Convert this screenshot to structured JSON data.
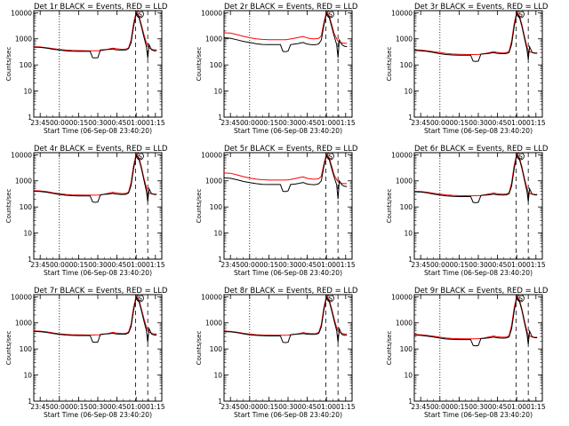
{
  "chart_data": {
    "type": "line",
    "shared": {
      "xlabel": "Start Time (06-Sep-08 23:40:20)",
      "ylabel": "Counts/sec",
      "x_tick_labels": [
        "23:45",
        "00:00",
        "00:15",
        "00:30",
        "00:45",
        "01:00",
        "01:15"
      ],
      "x_tick_minutes": [
        5,
        20,
        35,
        50,
        65,
        80,
        95
      ],
      "x_range_minutes": [
        0,
        100
      ],
      "y_scale": "log",
      "y_tick_labels": [
        "1",
        "10",
        "100",
        "1000",
        "10000"
      ],
      "ylim": [
        1,
        12000
      ],
      "series_colors": {
        "events": "#000000",
        "lld": "#ff0000"
      },
      "marker_minutes": {
        "dotted": 20,
        "dashed": [
          79.5,
          89
        ]
      },
      "annotation": "S",
      "x_minutes": [
        0,
        5,
        10,
        15,
        20,
        25,
        30,
        35,
        40,
        42,
        44,
        46,
        48,
        50,
        52,
        54,
        56,
        58,
        60,
        62,
        64,
        66,
        68,
        70,
        72,
        74,
        76,
        78,
        80,
        82,
        84,
        86,
        88,
        89,
        90,
        92,
        94,
        96
      ]
    },
    "panels": [
      {
        "title": "Det 1r BLACK = Events, RED = LLD",
        "events": [
          480,
          470,
          440,
          400,
          370,
          345,
          335,
          330,
          330,
          330,
          330,
          190,
          185,
          190,
          370,
          380,
          385,
          390,
          400,
          410,
          380,
          375,
          370,
          370,
          375,
          420,
          700,
          3000,
          9500,
          7000,
          3000,
          1200,
          500,
          180,
          600,
          380,
          350,
          350
        ],
        "lld": [
          500,
          490,
          460,
          420,
          390,
          370,
          360,
          355,
          352,
          350,
          350,
          350,
          350,
          352,
          355,
          365,
          380,
          400,
          420,
          440,
          420,
          410,
          400,
          400,
          405,
          450,
          900,
          4000,
          10500,
          8000,
          3500,
          1500,
          700,
          520,
          450,
          400,
          380,
          380
        ]
      },
      {
        "title": "Det 2r BLACK = Events, RED = LLD",
        "events": [
          1100,
          1050,
          920,
          800,
          720,
          650,
          610,
          600,
          600,
          600,
          600,
          330,
          320,
          340,
          600,
          620,
          640,
          660,
          700,
          720,
          650,
          620,
          600,
          590,
          600,
          650,
          900,
          3300,
          9500,
          7000,
          3000,
          1300,
          600,
          190,
          900,
          600,
          520,
          500
        ],
        "lld": [
          1700,
          1650,
          1450,
          1250,
          1100,
          1000,
          950,
          920,
          920,
          920,
          920,
          920,
          930,
          950,
          990,
          1030,
          1080,
          1130,
          1180,
          1220,
          1120,
          1060,
          1020,
          1000,
          1010,
          1050,
          1300,
          4200,
          10500,
          8000,
          3600,
          1600,
          1000,
          820,
          750,
          700,
          680,
          680
        ]
      },
      {
        "title": "Det 3r BLACK = Events, RED = LLD",
        "events": [
          360,
          350,
          330,
          300,
          270,
          250,
          240,
          235,
          235,
          235,
          235,
          140,
          135,
          140,
          260,
          265,
          270,
          275,
          285,
          295,
          280,
          275,
          270,
          270,
          275,
          300,
          600,
          2800,
          9500,
          7000,
          3000,
          1100,
          400,
          160,
          500,
          300,
          280,
          280
        ],
        "lld": [
          380,
          370,
          350,
          320,
          295,
          275,
          262,
          255,
          252,
          250,
          250,
          250,
          250,
          252,
          258,
          266,
          278,
          292,
          306,
          320,
          306,
          298,
          292,
          290,
          295,
          330,
          800,
          3800,
          10500,
          8000,
          3500,
          1300,
          500,
          350,
          320,
          300,
          290,
          290
        ]
      },
      {
        "title": "Det 4r BLACK = Events, RED = LLD",
        "events": [
          400,
          390,
          365,
          330,
          300,
          280,
          270,
          265,
          265,
          265,
          265,
          155,
          150,
          155,
          290,
          300,
          305,
          310,
          320,
          330,
          310,
          305,
          300,
          300,
          305,
          340,
          650,
          2900,
          9500,
          7000,
          3000,
          1100,
          400,
          160,
          500,
          320,
          300,
          300
        ],
        "lld": [
          420,
          410,
          385,
          350,
          320,
          300,
          290,
          285,
          283,
          282,
          282,
          282,
          283,
          285,
          290,
          300,
          315,
          330,
          345,
          360,
          345,
          335,
          328,
          325,
          330,
          370,
          850,
          3900,
          10500,
          8000,
          3500,
          1300,
          550,
          380,
          340,
          320,
          310,
          310
        ]
      },
      {
        "title": "Det 5r BLACK = Events, RED = LLD",
        "events": [
          1300,
          1250,
          1100,
          950,
          850,
          780,
          730,
          720,
          720,
          720,
          720,
          400,
          385,
          410,
          720,
          740,
          760,
          790,
          830,
          860,
          780,
          740,
          720,
          710,
          720,
          780,
          1000,
          3500,
          9500,
          7000,
          3000,
          1400,
          700,
          200,
          1000,
          700,
          620,
          600
        ],
        "lld": [
          2000,
          1950,
          1700,
          1450,
          1280,
          1160,
          1100,
          1070,
          1065,
          1065,
          1065,
          1065,
          1070,
          1090,
          1130,
          1180,
          1240,
          1300,
          1360,
          1400,
          1290,
          1220,
          1180,
          1160,
          1170,
          1220,
          1500,
          4400,
          10500,
          8000,
          3700,
          1700,
          1100,
          920,
          850,
          800,
          780,
          780
        ]
      },
      {
        "title": "Det 6r BLACK = Events, RED = LLD",
        "events": [
          380,
          370,
          345,
          310,
          285,
          265,
          255,
          250,
          250,
          250,
          250,
          150,
          145,
          150,
          275,
          280,
          285,
          290,
          300,
          310,
          295,
          290,
          285,
          285,
          290,
          320,
          620,
          2800,
          9500,
          7000,
          3000,
          1100,
          400,
          160,
          500,
          310,
          290,
          290
        ],
        "lld": [
          400,
          390,
          365,
          335,
          310,
          290,
          278,
          272,
          270,
          268,
          268,
          268,
          269,
          271,
          276,
          285,
          298,
          312,
          326,
          340,
          326,
          318,
          312,
          310,
          315,
          350,
          820,
          3850,
          10500,
          8000,
          3500,
          1300,
          520,
          360,
          330,
          310,
          300,
          300
        ]
      },
      {
        "title": "Det 7r BLACK = Events, RED = LLD",
        "events": [
          470,
          460,
          430,
          390,
          360,
          340,
          330,
          325,
          325,
          325,
          325,
          185,
          180,
          185,
          360,
          370,
          375,
          380,
          390,
          400,
          375,
          370,
          365,
          365,
          370,
          410,
          700,
          3000,
          9500,
          7000,
          3000,
          1200,
          500,
          180,
          600,
          370,
          340,
          340
        ],
        "lld": [
          490,
          480,
          450,
          410,
          380,
          360,
          350,
          345,
          343,
          342,
          342,
          342,
          343,
          346,
          352,
          362,
          376,
          392,
          410,
          430,
          412,
          402,
          394,
          392,
          398,
          440,
          880,
          4000,
          10500,
          8000,
          3500,
          1500,
          680,
          500,
          440,
          400,
          375,
          375
        ]
      },
      {
        "title": "Det 8r BLACK = Events, RED = LLD",
        "events": [
          460,
          450,
          420,
          380,
          350,
          330,
          320,
          315,
          315,
          315,
          315,
          180,
          175,
          180,
          350,
          360,
          365,
          370,
          380,
          390,
          370,
          365,
          360,
          360,
          365,
          400,
          690,
          3000,
          9500,
          7000,
          3000,
          1200,
          500,
          180,
          600,
          360,
          335,
          335
        ],
        "lld": [
          480,
          470,
          440,
          400,
          372,
          352,
          342,
          338,
          336,
          335,
          335,
          335,
          336,
          339,
          345,
          355,
          368,
          384,
          400,
          420,
          403,
          394,
          387,
          385,
          391,
          432,
          870,
          3950,
          10500,
          8000,
          3500,
          1450,
          660,
          490,
          430,
          395,
          370,
          370
        ]
      },
      {
        "title": "Det 9r BLACK = Events, RED = LLD",
        "events": [
          340,
          330,
          310,
          285,
          260,
          240,
          232,
          228,
          228,
          228,
          228,
          135,
          130,
          135,
          250,
          255,
          260,
          265,
          275,
          285,
          270,
          265,
          260,
          260,
          265,
          290,
          580,
          2700,
          9500,
          7000,
          3000,
          1050,
          380,
          150,
          480,
          290,
          270,
          270
        ],
        "lld": [
          360,
          350,
          330,
          305,
          282,
          262,
          252,
          247,
          245,
          244,
          244,
          244,
          245,
          247,
          252,
          260,
          272,
          285,
          298,
          312,
          298,
          290,
          284,
          282,
          287,
          320,
          780,
          3700,
          10500,
          8000,
          3400,
          1250,
          480,
          340,
          310,
          290,
          280,
          280
        ]
      }
    ]
  }
}
